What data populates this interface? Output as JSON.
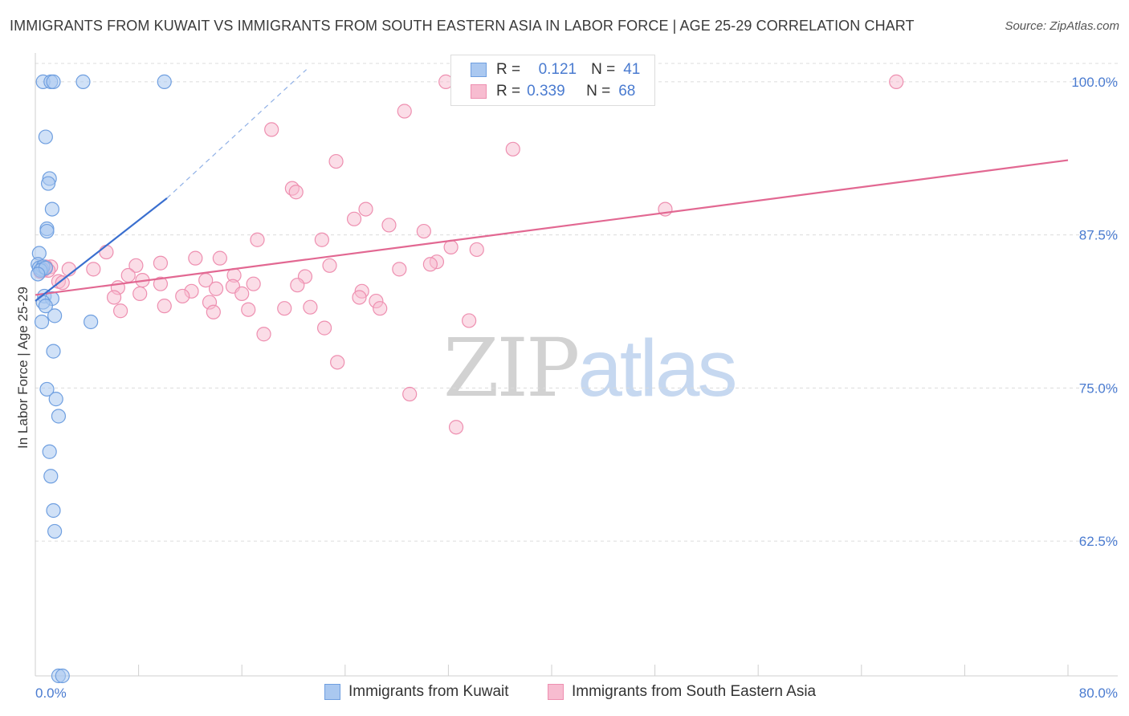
{
  "title": "IMMIGRANTS FROM KUWAIT VS IMMIGRANTS FROM SOUTH EASTERN ASIA IN LABOR FORCE | AGE 25-29 CORRELATION CHART",
  "source": "Source: ZipAtlas.com",
  "watermark": {
    "zip": "ZIP",
    "atlas": "atlas"
  },
  "legend": {
    "rows": [
      {
        "r_label": "R =",
        "r_value": "0.121",
        "n_label": "N =",
        "n_value": "41"
      },
      {
        "r_label": "R =",
        "r_value": "0.339",
        "n_label": "N =",
        "n_value": "68"
      }
    ]
  },
  "bottom_legend": [
    "Immigrants from Kuwait",
    "Immigrants from South Eastern Asia"
  ],
  "colors": {
    "kuwait_fill": "#aac8f0",
    "kuwait_stroke": "#6f9fe0",
    "kuwait_line": "#3a6fcf",
    "sea_fill": "#f7bcd0",
    "sea_stroke": "#ee8fb0",
    "sea_line": "#e26892",
    "grid": "#dcdcdc",
    "tick_text": "#4a7bd0"
  },
  "chart_data": {
    "type": "scatter",
    "title": "IMMIGRANTS FROM KUWAIT VS IMMIGRANTS FROM SOUTH EASTERN ASIA IN LABOR FORCE | AGE 25-29 CORRELATION CHART",
    "xlabel": "",
    "ylabel": "In Labor Force | Age 25-29",
    "xlim": [
      0,
      80
    ],
    "ylim": [
      51.5,
      101.5
    ],
    "x_tick_labels": [
      "0.0%",
      "80.0%"
    ],
    "y_ticks": [
      62.5,
      75.0,
      87.5,
      100.0
    ],
    "y_tick_labels": [
      "62.5%",
      "75.0%",
      "87.5%",
      "100.0%"
    ],
    "grid": true,
    "series": [
      {
        "name": "Immigrants from Kuwait",
        "R": 0.121,
        "N": 41,
        "trend": {
          "x": [
            0.0,
            10.2
          ],
          "y": [
            82.1,
            90.5
          ]
        },
        "trend_dashed": {
          "x": [
            10.2,
            21.0
          ],
          "y": [
            90.5,
            101.0
          ]
        },
        "points": [
          [
            0.6,
            100.0
          ],
          [
            1.2,
            100.0
          ],
          [
            1.4,
            100.0
          ],
          [
            3.7,
            100.0
          ],
          [
            10.0,
            100.0
          ],
          [
            0.8,
            95.5
          ],
          [
            1.1,
            92.1
          ],
          [
            1.0,
            91.7
          ],
          [
            1.3,
            89.6
          ],
          [
            0.9,
            88.0
          ],
          [
            0.9,
            87.8
          ],
          [
            0.3,
            86.0
          ],
          [
            0.2,
            85.1
          ],
          [
            0.3,
            84.8
          ],
          [
            0.5,
            84.7
          ],
          [
            0.6,
            84.9
          ],
          [
            0.4,
            84.6
          ],
          [
            0.8,
            84.8
          ],
          [
            0.2,
            84.3
          ],
          [
            0.7,
            82.5
          ],
          [
            1.3,
            82.3
          ],
          [
            0.6,
            82.0
          ],
          [
            0.8,
            81.7
          ],
          [
            1.5,
            80.9
          ],
          [
            0.5,
            80.4
          ],
          [
            4.3,
            80.4
          ],
          [
            1.4,
            78.0
          ],
          [
            0.9,
            74.9
          ],
          [
            1.6,
            74.1
          ],
          [
            1.8,
            72.7
          ],
          [
            1.1,
            69.8
          ],
          [
            1.2,
            67.8
          ],
          [
            1.4,
            65.0
          ],
          [
            1.5,
            63.3
          ],
          [
            1.8,
            51.5
          ],
          [
            2.1,
            51.5
          ]
        ]
      },
      {
        "name": "Immigrants from South Eastern Asia",
        "R": 0.339,
        "N": 68,
        "trend": {
          "x": [
            0.0,
            80.0
          ],
          "y": [
            82.6,
            93.6
          ]
        },
        "points": [
          [
            31.8,
            100.0
          ],
          [
            66.7,
            100.0
          ],
          [
            28.6,
            97.6
          ],
          [
            18.3,
            96.1
          ],
          [
            37.0,
            94.5
          ],
          [
            23.3,
            93.5
          ],
          [
            19.9,
            91.3
          ],
          [
            20.2,
            91.0
          ],
          [
            48.8,
            89.6
          ],
          [
            25.6,
            89.6
          ],
          [
            24.7,
            88.8
          ],
          [
            27.4,
            88.3
          ],
          [
            30.1,
            87.8
          ],
          [
            17.2,
            87.1
          ],
          [
            22.2,
            87.1
          ],
          [
            32.2,
            86.5
          ],
          [
            34.2,
            86.3
          ],
          [
            5.5,
            86.1
          ],
          [
            12.4,
            85.6
          ],
          [
            14.3,
            85.6
          ],
          [
            7.8,
            85.0
          ],
          [
            9.7,
            85.2
          ],
          [
            31.1,
            85.3
          ],
          [
            30.6,
            85.1
          ],
          [
            22.8,
            85.0
          ],
          [
            28.2,
            84.7
          ],
          [
            2.6,
            84.7
          ],
          [
            4.5,
            84.7
          ],
          [
            7.2,
            84.2
          ],
          [
            15.4,
            84.2
          ],
          [
            20.9,
            84.1
          ],
          [
            8.3,
            83.8
          ],
          [
            13.2,
            83.8
          ],
          [
            15.3,
            83.3
          ],
          [
            1.8,
            83.7
          ],
          [
            9.7,
            83.5
          ],
          [
            6.4,
            83.2
          ],
          [
            2.1,
            83.6
          ],
          [
            16.9,
            83.5
          ],
          [
            14.0,
            83.1
          ],
          [
            25.3,
            82.9
          ],
          [
            8.1,
            82.7
          ],
          [
            6.1,
            82.4
          ],
          [
            12.1,
            82.9
          ],
          [
            16.0,
            82.7
          ],
          [
            20.3,
            83.4
          ],
          [
            26.4,
            82.1
          ],
          [
            11.4,
            82.5
          ],
          [
            13.5,
            82.0
          ],
          [
            10.0,
            81.7
          ],
          [
            6.6,
            81.3
          ],
          [
            19.3,
            81.5
          ],
          [
            21.3,
            81.6
          ],
          [
            26.7,
            81.5
          ],
          [
            16.5,
            81.4
          ],
          [
            25.1,
            82.4
          ],
          [
            13.8,
            81.2
          ],
          [
            33.6,
            80.5
          ],
          [
            22.4,
            79.9
          ],
          [
            17.7,
            79.4
          ],
          [
            23.4,
            77.1
          ],
          [
            29.0,
            74.5
          ],
          [
            32.6,
            71.8
          ],
          [
            0.6,
            84.6
          ],
          [
            1.2,
            84.9
          ],
          [
            1.0,
            84.6
          ],
          [
            0.4,
            84.5
          ],
          [
            0.8,
            84.9
          ]
        ]
      }
    ]
  }
}
